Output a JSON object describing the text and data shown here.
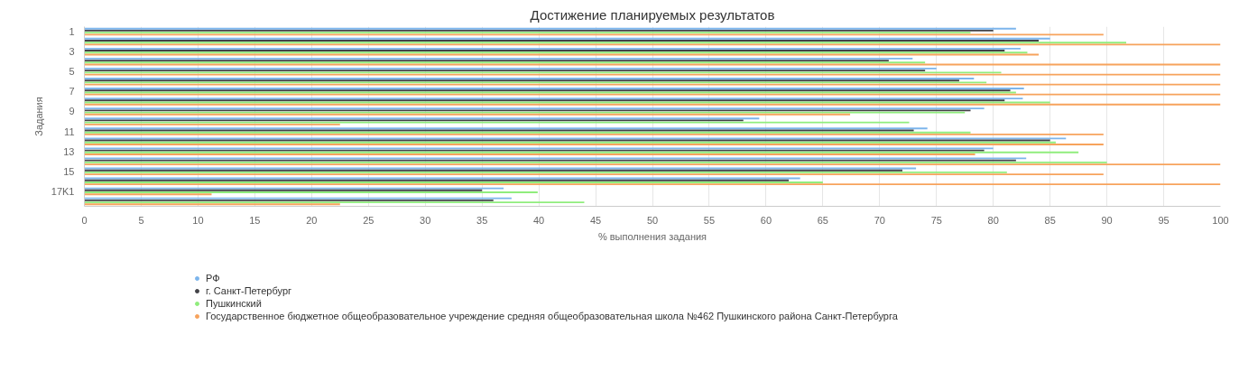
{
  "chart_data": {
    "type": "bar",
    "orientation": "horizontal",
    "title": "Достижение планируемых результатов",
    "xlabel": "% выполнения задания",
    "ylabel": "Задания",
    "categories": [
      "1",
      null,
      "3",
      null,
      "5",
      null,
      "7",
      null,
      "9",
      null,
      "11",
      null,
      "13",
      null,
      "15",
      null,
      "17K1",
      null
    ],
    "series": [
      {
        "name": "РФ",
        "color": "#7cb5ec",
        "values": [
          82,
          85,
          82.4,
          72.9,
          75,
          78.3,
          82.7,
          82.6,
          79.2,
          59.4,
          74.2,
          86.4,
          80,
          82.9,
          73.2,
          63,
          36.9,
          37.6
        ]
      },
      {
        "name": "г. Санкт-Петербург",
        "color": "#434348",
        "values": [
          80,
          84,
          81,
          70.8,
          74,
          77,
          81.5,
          81,
          78,
          58,
          73,
          85,
          79.2,
          82,
          72,
          62,
          35,
          36
        ]
      },
      {
        "name": "Пушкинский",
        "color": "#90ed7d",
        "values": [
          78,
          91.7,
          83,
          74,
          80.7,
          79.4,
          82,
          85,
          77.5,
          72.6,
          78,
          85.5,
          87.5,
          90,
          81.2,
          65,
          39.9,
          44
        ]
      },
      {
        "name": "Государственное бюджетное общеобразовательное учреждение средняя общеобразовательная школа №462 Пушкинского района Санкт-Петербурга",
        "color": "#f7a35c",
        "values": [
          89.7,
          100,
          84,
          100,
          100,
          100,
          100,
          100,
          67.4,
          22.5,
          89.7,
          89.7,
          78.4,
          100,
          89.7,
          100,
          11.2,
          22.5
        ]
      }
    ],
    "xlim": [
      0,
      100
    ],
    "xticks": [
      0,
      5,
      10,
      15,
      20,
      25,
      30,
      35,
      40,
      45,
      50,
      55,
      60,
      65,
      70,
      75,
      80,
      85,
      90,
      95,
      100
    ],
    "grid": "x",
    "legend": "bottom"
  }
}
